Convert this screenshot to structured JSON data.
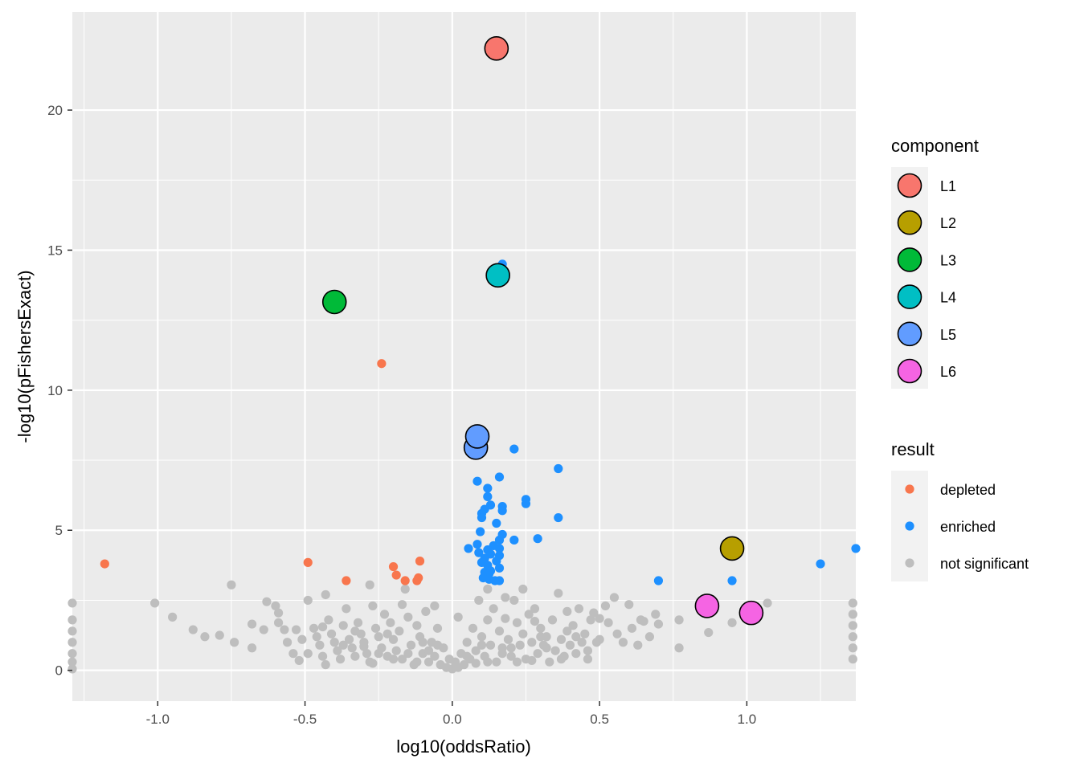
{
  "chart_data": {
    "type": "scatter",
    "xlabel": "log10(oddsRatio)",
    "ylabel": "-log10(pFishersExact)",
    "xlim": [
      -1.29,
      1.37
    ],
    "ylim": [
      -1.1,
      23.5
    ],
    "x_ticks": [
      -1.0,
      -0.5,
      0.0,
      0.5,
      1.0
    ],
    "x_tick_labels": [
      "-1.0",
      "-0.5",
      "0.0",
      "0.5",
      "1.0"
    ],
    "y_ticks": [
      0,
      5,
      10,
      15,
      20
    ],
    "y_tick_labels": [
      "0",
      "5",
      "10",
      "15",
      "20"
    ],
    "grid": true,
    "legend_position": "right",
    "legends": {
      "component": {
        "title": "component",
        "entries": [
          {
            "label": "L1",
            "color": "#F8766D"
          },
          {
            "label": "L2",
            "color": "#B79F00"
          },
          {
            "label": "L3",
            "color": "#00BA38"
          },
          {
            "label": "L4",
            "color": "#00BFC4"
          },
          {
            "label": "L5",
            "color": "#619CFF"
          },
          {
            "label": "L6",
            "color": "#F564E3"
          }
        ]
      },
      "result": {
        "title": "result",
        "entries": [
          {
            "label": "depleted",
            "color": "#F8764D"
          },
          {
            "label": "enriched",
            "color": "#1E90FF"
          },
          {
            "label": "not significant",
            "color": "#BEBEBE"
          }
        ]
      }
    },
    "series": [
      {
        "name": "depleted",
        "color": "#F8764D",
        "points": [
          [
            -1.18,
            3.8
          ],
          [
            -0.49,
            3.85
          ],
          [
            -0.36,
            3.2
          ],
          [
            -0.24,
            10.95
          ],
          [
            -0.2,
            3.7
          ],
          [
            -0.19,
            3.4
          ],
          [
            -0.16,
            3.2
          ],
          [
            -0.12,
            3.2
          ],
          [
            -0.115,
            3.3
          ],
          [
            -0.11,
            3.9
          ]
        ]
      },
      {
        "name": "enriched",
        "color": "#1E90FF",
        "points": [
          [
            0.17,
            14.5
          ],
          [
            0.21,
            7.9
          ],
          [
            0.36,
            7.2
          ],
          [
            0.16,
            6.9
          ],
          [
            0.085,
            6.75
          ],
          [
            0.12,
            6.5
          ],
          [
            0.12,
            6.2
          ],
          [
            0.25,
            6.1
          ],
          [
            0.25,
            5.95
          ],
          [
            0.13,
            5.9
          ],
          [
            0.17,
            5.85
          ],
          [
            0.11,
            5.75
          ],
          [
            0.17,
            5.7
          ],
          [
            0.1,
            5.6
          ],
          [
            0.1,
            5.45
          ],
          [
            0.36,
            5.45
          ],
          [
            0.15,
            5.25
          ],
          [
            0.095,
            4.95
          ],
          [
            0.17,
            4.85
          ],
          [
            0.29,
            4.7
          ],
          [
            0.21,
            4.65
          ],
          [
            0.16,
            4.65
          ],
          [
            0.085,
            4.5
          ],
          [
            0.14,
            4.45
          ],
          [
            0.055,
            4.35
          ],
          [
            0.12,
            4.3
          ],
          [
            0.16,
            4.35
          ],
          [
            0.09,
            4.2
          ],
          [
            0.13,
            4.15
          ],
          [
            0.16,
            4.1
          ],
          [
            0.11,
            4.0
          ],
          [
            0.15,
            3.9
          ],
          [
            0.1,
            3.85
          ],
          [
            0.12,
            3.75
          ],
          [
            0.16,
            3.65
          ],
          [
            0.13,
            3.55
          ],
          [
            0.11,
            3.5
          ],
          [
            0.125,
            3.45
          ],
          [
            0.105,
            3.3
          ],
          [
            0.125,
            3.25
          ],
          [
            0.145,
            3.2
          ],
          [
            0.16,
            3.2
          ],
          [
            0.7,
            3.2
          ],
          [
            0.95,
            3.2
          ],
          [
            1.25,
            3.8
          ],
          [
            1.37,
            4.35
          ]
        ]
      },
      {
        "name": "not significant",
        "color": "#BEBEBE",
        "points": [
          [
            -1.29,
            2.4
          ],
          [
            -1.29,
            1.8
          ],
          [
            -1.29,
            1.4
          ],
          [
            -1.29,
            1.0
          ],
          [
            -1.29,
            0.6
          ],
          [
            -1.29,
            0.3
          ],
          [
            -1.29,
            0.05
          ],
          [
            -1.01,
            2.4
          ],
          [
            -0.95,
            1.9
          ],
          [
            -0.88,
            1.45
          ],
          [
            -0.84,
            1.2
          ],
          [
            -0.79,
            1.25
          ],
          [
            -0.75,
            3.05
          ],
          [
            -0.74,
            1.0
          ],
          [
            -0.68,
            1.65
          ],
          [
            -0.68,
            0.8
          ],
          [
            -0.64,
            1.45
          ],
          [
            -0.63,
            2.45
          ],
          [
            -0.6,
            2.3
          ],
          [
            -0.59,
            2.05
          ],
          [
            -0.59,
            1.7
          ],
          [
            -0.57,
            1.45
          ],
          [
            -0.56,
            1.0
          ],
          [
            -0.54,
            0.6
          ],
          [
            -0.53,
            1.45
          ],
          [
            -0.52,
            0.35
          ],
          [
            -0.51,
            1.1
          ],
          [
            -0.49,
            2.5
          ],
          [
            -0.49,
            0.6
          ],
          [
            -0.47,
            1.5
          ],
          [
            -0.46,
            1.2
          ],
          [
            -0.45,
            0.9
          ],
          [
            -0.44,
            0.5
          ],
          [
            -0.43,
            0.2
          ],
          [
            -0.43,
            2.7
          ],
          [
            -0.42,
            1.8
          ],
          [
            -0.41,
            1.3
          ],
          [
            -0.4,
            1.0
          ],
          [
            -0.39,
            0.7
          ],
          [
            -0.38,
            0.4
          ],
          [
            -0.37,
            1.6
          ],
          [
            -0.36,
            2.2
          ],
          [
            -0.35,
            1.1
          ],
          [
            -0.34,
            0.8
          ],
          [
            -0.33,
            0.5
          ],
          [
            -0.32,
            1.7
          ],
          [
            -0.31,
            1.3
          ],
          [
            -0.3,
            1.0
          ],
          [
            -0.29,
            0.6
          ],
          [
            -0.28,
            3.05
          ],
          [
            -0.28,
            0.3
          ],
          [
            -0.27,
            2.3
          ],
          [
            -0.26,
            1.5
          ],
          [
            -0.25,
            1.2
          ],
          [
            -0.24,
            0.8
          ],
          [
            -0.23,
            2.0
          ],
          [
            -0.22,
            0.5
          ],
          [
            -0.21,
            1.7
          ],
          [
            -0.2,
            1.1
          ],
          [
            -0.19,
            0.7
          ],
          [
            -0.18,
            1.4
          ],
          [
            -0.17,
            0.4
          ],
          [
            -0.16,
            2.9
          ],
          [
            -0.15,
            1.9
          ],
          [
            -0.14,
            0.9
          ],
          [
            -0.13,
            0.2
          ],
          [
            -0.12,
            1.6
          ],
          [
            -0.11,
            1.2
          ],
          [
            -0.1,
            0.6
          ],
          [
            -0.09,
            2.1
          ],
          [
            -0.08,
            0.3
          ],
          [
            -0.07,
            1.0
          ],
          [
            -0.06,
            0.5
          ],
          [
            -0.05,
            1.5
          ],
          [
            -0.04,
            0.2
          ],
          [
            -0.03,
            0.8
          ],
          [
            -0.02,
            0.1
          ],
          [
            -0.01,
            0.4
          ],
          [
            0.0,
            0.05
          ],
          [
            0.01,
            0.3
          ],
          [
            0.02,
            0.1
          ],
          [
            0.03,
            0.6
          ],
          [
            0.04,
            0.2
          ],
          [
            0.05,
            1.0
          ],
          [
            0.06,
            0.4
          ],
          [
            0.07,
            1.5
          ],
          [
            0.08,
            0.7
          ],
          [
            0.09,
            2.5
          ],
          [
            0.1,
            1.2
          ],
          [
            0.11,
            0.5
          ],
          [
            0.12,
            1.8
          ],
          [
            0.13,
            0.9
          ],
          [
            0.14,
            2.2
          ],
          [
            0.15,
            0.3
          ],
          [
            0.16,
            1.4
          ],
          [
            0.17,
            0.8
          ],
          [
            0.18,
            2.6
          ],
          [
            0.19,
            1.1
          ],
          [
            0.2,
            0.5
          ],
          [
            0.21,
            2.5
          ],
          [
            0.22,
            1.7
          ],
          [
            0.23,
            0.9
          ],
          [
            0.24,
            1.3
          ],
          [
            0.25,
            0.4
          ],
          [
            0.26,
            2.0
          ],
          [
            0.27,
            1.0
          ],
          [
            0.28,
            2.2
          ],
          [
            0.29,
            0.6
          ],
          [
            0.3,
            1.5
          ],
          [
            0.31,
            0.9
          ],
          [
            0.32,
            1.2
          ],
          [
            0.33,
            0.3
          ],
          [
            0.34,
            1.8
          ],
          [
            0.35,
            0.7
          ],
          [
            0.36,
            2.75
          ],
          [
            0.37,
            1.1
          ],
          [
            0.38,
            0.5
          ],
          [
            0.39,
            1.4
          ],
          [
            0.4,
            0.9
          ],
          [
            0.41,
            1.6
          ],
          [
            0.42,
            0.6
          ],
          [
            0.43,
            2.2
          ],
          [
            0.44,
            1.0
          ],
          [
            0.45,
            1.3
          ],
          [
            0.46,
            0.7
          ],
          [
            0.47,
            1.8
          ],
          [
            0.48,
            2.05
          ],
          [
            0.49,
            1.0
          ],
          [
            0.5,
            1.85
          ],
          [
            0.52,
            2.3
          ],
          [
            0.53,
            1.7
          ],
          [
            0.55,
            2.6
          ],
          [
            0.56,
            1.3
          ],
          [
            0.58,
            1.0
          ],
          [
            0.6,
            2.35
          ],
          [
            0.61,
            1.5
          ],
          [
            0.63,
            0.9
          ],
          [
            0.64,
            1.8
          ],
          [
            0.65,
            1.75
          ],
          [
            0.67,
            1.2
          ],
          [
            0.69,
            2.0
          ],
          [
            0.7,
            1.65
          ],
          [
            0.77,
            1.8
          ],
          [
            0.77,
            0.8
          ],
          [
            0.87,
            1.35
          ],
          [
            0.95,
            1.7
          ],
          [
            1.07,
            2.4
          ],
          [
            1.36,
            2.4
          ],
          [
            1.36,
            2.0
          ],
          [
            1.36,
            1.6
          ],
          [
            1.36,
            1.2
          ],
          [
            1.36,
            0.8
          ],
          [
            1.36,
            0.4
          ],
          [
            -0.37,
            0.9
          ],
          [
            -0.3,
            0.85
          ],
          [
            -0.25,
            0.6
          ],
          [
            -0.2,
            0.4
          ],
          [
            -0.15,
            0.6
          ],
          [
            -0.12,
            0.3
          ],
          [
            -0.08,
            0.7
          ],
          [
            -0.05,
            0.9
          ],
          [
            0.05,
            0.5
          ],
          [
            0.08,
            0.25
          ],
          [
            0.12,
            0.3
          ],
          [
            0.17,
            0.6
          ],
          [
            0.22,
            0.3
          ],
          [
            0.27,
            0.35
          ],
          [
            0.32,
            0.8
          ],
          [
            0.37,
            0.4
          ],
          [
            0.46,
            0.4
          ],
          [
            0.5,
            1.1
          ],
          [
            0.3,
            1.2
          ],
          [
            0.2,
            0.8
          ],
          [
            0.1,
            0.9
          ],
          [
            -0.1,
            1.0
          ],
          [
            -0.22,
            1.3
          ],
          [
            -0.33,
            1.4
          ],
          [
            -0.44,
            1.55
          ],
          [
            -0.06,
            2.3
          ],
          [
            -0.17,
            2.35
          ],
          [
            0.02,
            1.9
          ],
          [
            0.18,
            1.85
          ],
          [
            0.28,
            1.75
          ],
          [
            0.39,
            2.1
          ],
          [
            -0.27,
            0.25
          ],
          [
            0.42,
            1.2
          ],
          [
            0.24,
            2.9
          ],
          [
            0.12,
            2.9
          ]
        ]
      },
      {
        "name": "component",
        "points": [
          {
            "label": "L1",
            "x": 0.15,
            "y": 22.2,
            "color": "#F8766D"
          },
          {
            "label": "L2",
            "x": 0.95,
            "y": 4.35,
            "color": "#B79F00"
          },
          {
            "label": "L3",
            "x": -0.4,
            "y": 13.15,
            "color": "#00BA38"
          },
          {
            "label": "L4",
            "x": 0.155,
            "y": 14.1,
            "color": "#00BFC4"
          },
          {
            "label": "L5",
            "x": 0.08,
            "y": 7.95,
            "color": "#619CFF"
          },
          {
            "label": "L5",
            "x": 0.085,
            "y": 8.35,
            "color": "#619CFF"
          },
          {
            "label": "L6",
            "x": 0.865,
            "y": 2.3,
            "color": "#F564E3"
          },
          {
            "label": "L6",
            "x": 1.015,
            "y": 2.05,
            "color": "#F564E3"
          }
        ]
      }
    ]
  }
}
